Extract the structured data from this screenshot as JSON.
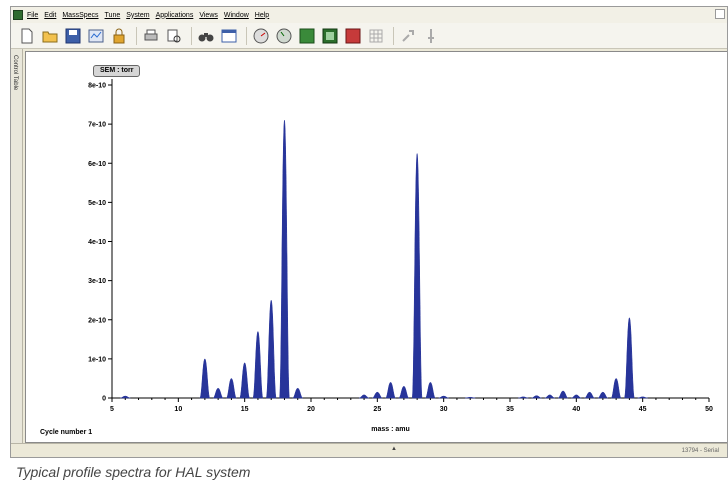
{
  "menu": {
    "items": [
      "File",
      "Edit",
      "MassSpecs",
      "Tune",
      "System",
      "Applications",
      "Views",
      "Window",
      "Help"
    ]
  },
  "toolbar": {
    "icons": [
      "new-file-icon",
      "open-folder-icon",
      "save-icon",
      "settings-icon",
      "lock-icon",
      "print-icon",
      "print-preview-icon",
      "binoculars-icon",
      "window-icon",
      "gauge-icon",
      "gauge-alt-icon",
      "green-square-icon",
      "green-dark-icon",
      "red-square-icon",
      "grid-icon",
      "tool-icon",
      "pin-icon"
    ]
  },
  "sidebar": {
    "tab_label": "Control Table"
  },
  "badge": {
    "label": "SEM : torr"
  },
  "status": {
    "cycle": "Cycle number 1",
    "right_text": "13794 - Serial"
  },
  "caption": "Typical profile spectra for HAL system",
  "colors": {
    "peak_fill": "#27349a"
  },
  "chart_data": {
    "type": "area",
    "title": "",
    "xlabel": "mass : amu",
    "ylabel": "",
    "xlim": [
      5,
      50
    ],
    "ylim": [
      0,
      8e-10
    ],
    "x_ticks": [
      "5",
      "10",
      "15",
      "20",
      "25",
      "30",
      "35",
      "40",
      "45",
      "50"
    ],
    "y_ticks": [
      "0",
      "1e-10",
      "2e-10",
      "3e-10",
      "4e-10",
      "5e-10",
      "6e-10",
      "7e-10",
      "8e-10"
    ],
    "grid": false,
    "series": [
      {
        "peaks": [
          {
            "mass": 6,
            "height": 5e-12
          },
          {
            "mass": 12,
            "height": 1e-10
          },
          {
            "mass": 13,
            "height": 2.5e-11
          },
          {
            "mass": 14,
            "height": 5e-11
          },
          {
            "mass": 15,
            "height": 9e-11
          },
          {
            "mass": 16,
            "height": 1.7e-10
          },
          {
            "mass": 17,
            "height": 2.5e-10
          },
          {
            "mass": 18,
            "height": 7.1e-10
          },
          {
            "mass": 19,
            "height": 2.5e-11
          },
          {
            "mass": 24,
            "height": 8e-12
          },
          {
            "mass": 25,
            "height": 1.5e-11
          },
          {
            "mass": 26,
            "height": 4e-11
          },
          {
            "mass": 27,
            "height": 3e-11
          },
          {
            "mass": 28,
            "height": 6.25e-10
          },
          {
            "mass": 29,
            "height": 4e-11
          },
          {
            "mass": 30,
            "height": 5e-12
          },
          {
            "mass": 32,
            "height": 2e-12
          },
          {
            "mass": 36,
            "height": 3e-12
          },
          {
            "mass": 37,
            "height": 6e-12
          },
          {
            "mass": 38,
            "height": 8e-12
          },
          {
            "mass": 39,
            "height": 1.8e-11
          },
          {
            "mass": 40,
            "height": 8e-12
          },
          {
            "mass": 41,
            "height": 1.5e-11
          },
          {
            "mass": 42,
            "height": 1.5e-11
          },
          {
            "mass": 43,
            "height": 5e-11
          },
          {
            "mass": 44,
            "height": 2.05e-10
          },
          {
            "mass": 45,
            "height": 3e-12
          }
        ]
      }
    ]
  }
}
